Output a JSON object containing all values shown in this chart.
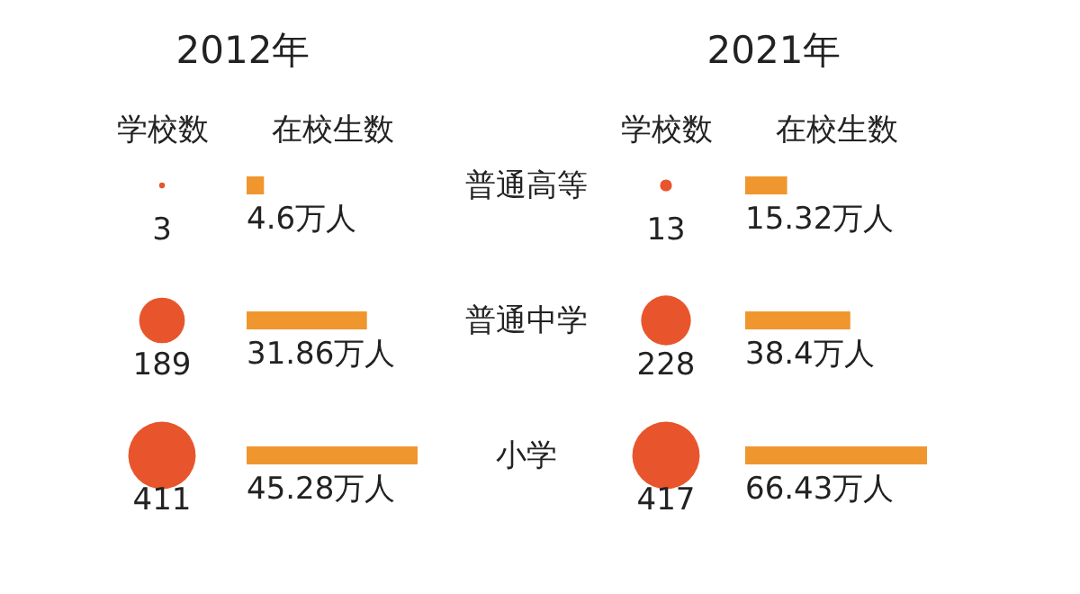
{
  "chart_data": [
    {
      "type": "other",
      "title": "2012年",
      "xlabel": "学校数",
      "categories": [
        null,
        null,
        null
      ],
      "values": [
        3,
        189,
        411
      ],
      "data_labels": true,
      "color": "#e8552c"
    },
    {
      "type": "bar",
      "orientation": "horizontal",
      "xlabel": "在校生数",
      "categories": [
        null,
        null,
        null
      ],
      "values": [
        4.6,
        31.86,
        45.28
      ],
      "value_labels": [
        "4.6万人",
        "31.86万人",
        "45.28万人"
      ],
      "color": "#f0962e"
    },
    {
      "type": "other",
      "title": "2021年",
      "xlabel": "学校数",
      "categories": [
        "普通高等",
        "普通中学",
        "小学"
      ],
      "values": [
        13,
        228,
        417
      ],
      "data_labels": true,
      "color": "#e8552c"
    },
    {
      "type": "bar",
      "orientation": "horizontal",
      "xlabel": "在校生数",
      "categories": [
        null,
        null,
        null
      ],
      "values": [
        15.32,
        38.4,
        66.43
      ],
      "value_labels": [
        "15.32万人",
        "38.4万人",
        "66.43万人"
      ],
      "color": "#f0962e"
    }
  ]
}
